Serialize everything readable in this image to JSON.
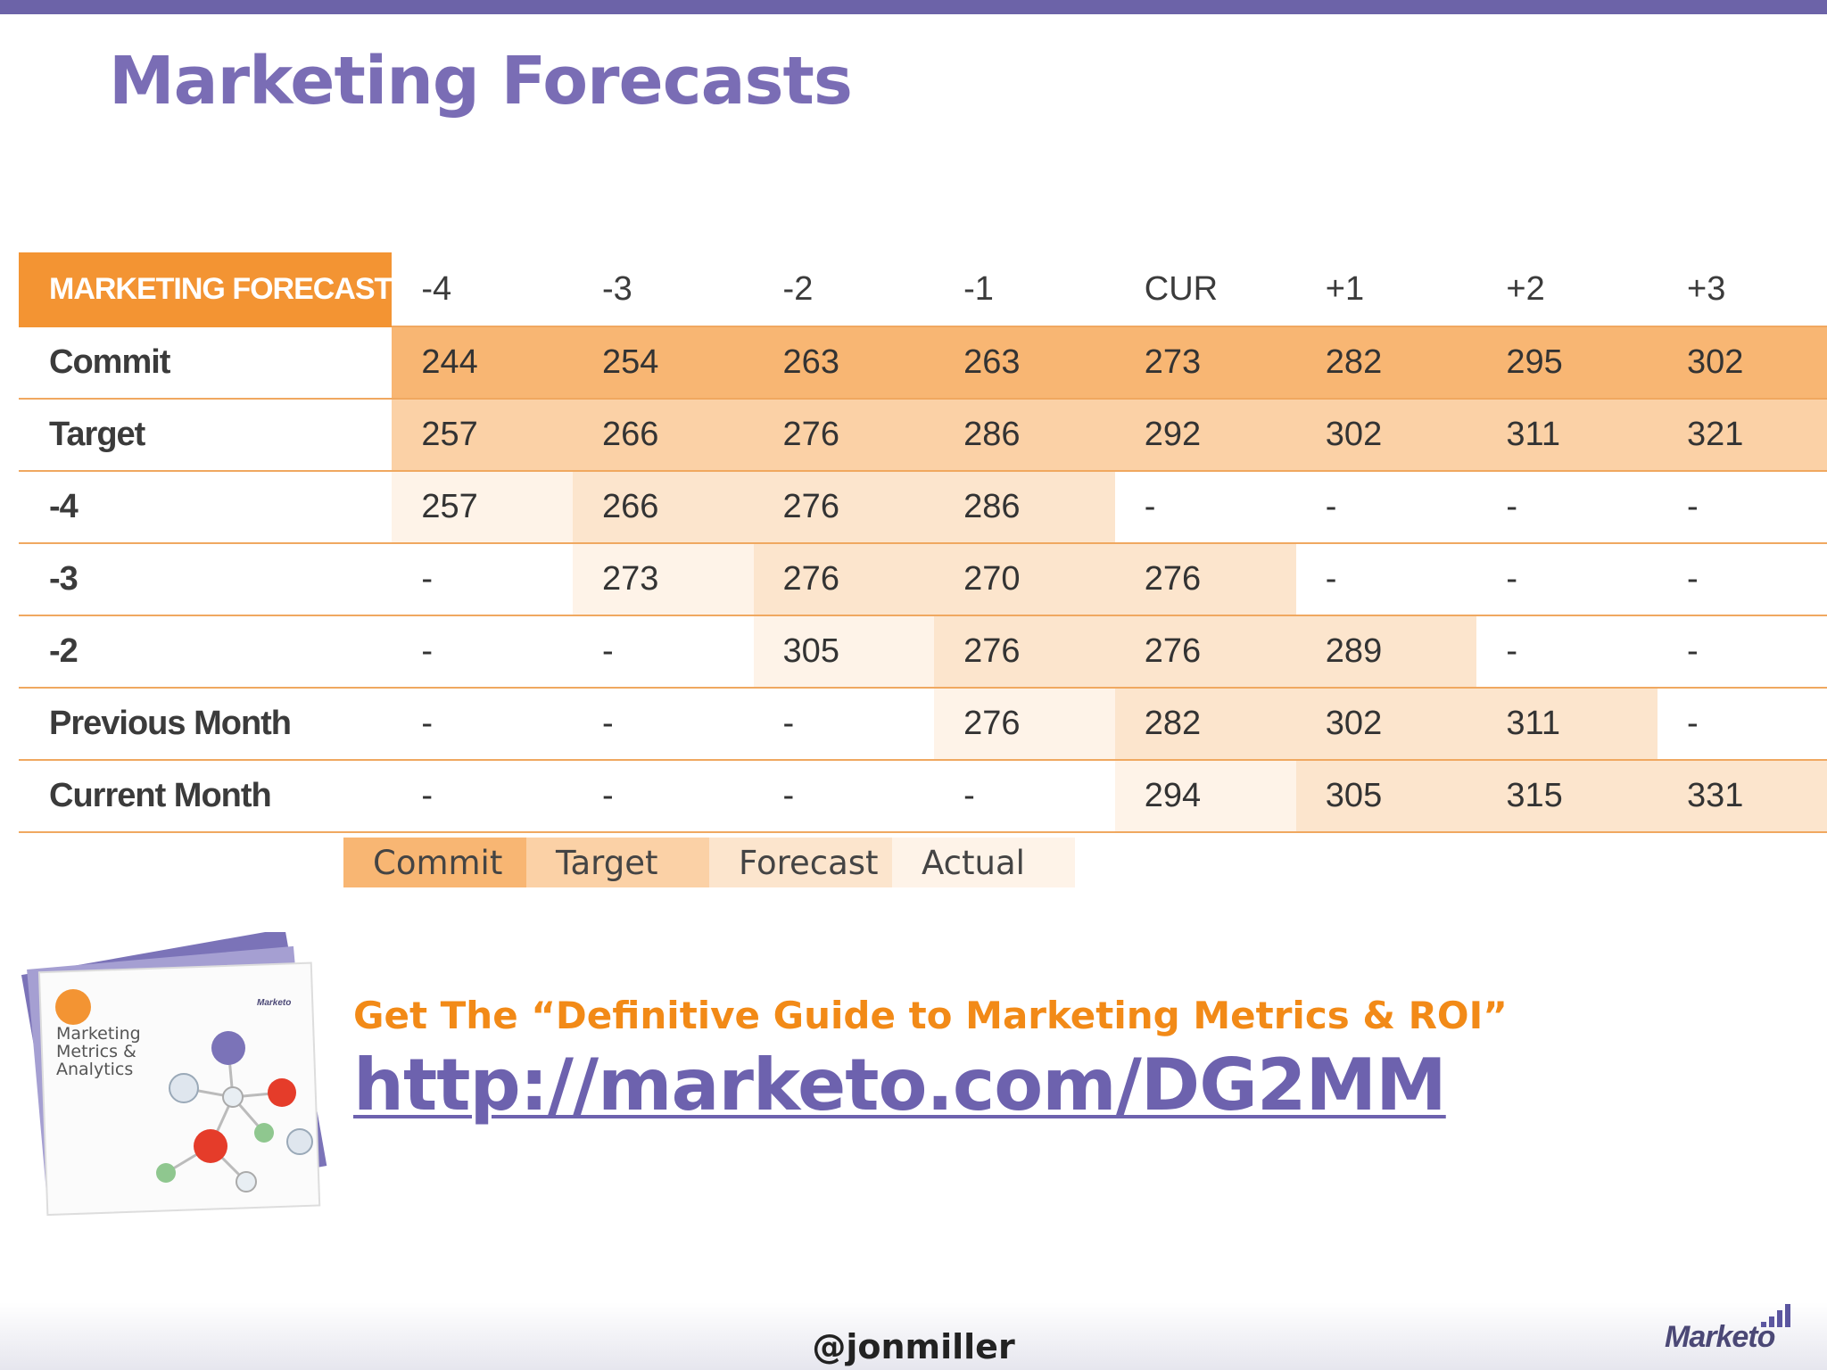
{
  "slide": {
    "title": "Marketing Forecasts",
    "top_bar_color": "#6c63a8"
  },
  "table": {
    "corner_label": "MARKETING FORECAST",
    "periods": [
      "-4",
      "-3",
      "-2",
      "-1",
      "CUR",
      "+1",
      "+2",
      "+3"
    ],
    "rows": [
      {
        "label": "Commit",
        "cells": [
          "244",
          "254",
          "263",
          "263",
          "273",
          "282",
          "295",
          "302"
        ],
        "shade": [
          "commit",
          "commit",
          "commit",
          "commit",
          "commit",
          "commit",
          "commit",
          "commit"
        ]
      },
      {
        "label": "Target",
        "cells": [
          "257",
          "266",
          "276",
          "286",
          "292",
          "302",
          "311",
          "321"
        ],
        "shade": [
          "target",
          "target",
          "target",
          "target",
          "target",
          "target",
          "target",
          "target"
        ]
      },
      {
        "label": "-4",
        "cells": [
          "257",
          "266",
          "276",
          "286",
          "-",
          "-",
          "-",
          "-"
        ],
        "shade": [
          "actual",
          "forecast",
          "forecast",
          "forecast",
          "none",
          "none",
          "none",
          "none"
        ]
      },
      {
        "label": "-3",
        "cells": [
          "-",
          "273",
          "276",
          "270",
          "276",
          "-",
          "-",
          "-"
        ],
        "shade": [
          "none",
          "actual",
          "forecast",
          "forecast",
          "forecast",
          "none",
          "none",
          "none"
        ]
      },
      {
        "label": "-2",
        "cells": [
          "-",
          "-",
          "305",
          "276",
          "276",
          "289",
          "-",
          "-"
        ],
        "shade": [
          "none",
          "none",
          "actual",
          "forecast",
          "forecast",
          "forecast",
          "none",
          "none"
        ]
      },
      {
        "label": "Previous Month",
        "cells": [
          "-",
          "-",
          "-",
          "276",
          "282",
          "302",
          "311",
          "-"
        ],
        "shade": [
          "none",
          "none",
          "none",
          "actual",
          "forecast",
          "forecast",
          "forecast",
          "none"
        ]
      },
      {
        "label": "Current Month",
        "cells": [
          "-",
          "-",
          "-",
          "-",
          "294",
          "305",
          "315",
          "331"
        ],
        "shade": [
          "none",
          "none",
          "none",
          "none",
          "actual",
          "forecast",
          "forecast",
          "forecast"
        ]
      }
    ]
  },
  "legend": [
    {
      "label": "Commit",
      "key": "commit"
    },
    {
      "label": "Target",
      "key": "target"
    },
    {
      "label": "Forecast",
      "key": "forecast"
    },
    {
      "label": "Actual",
      "key": "actual"
    }
  ],
  "colors": {
    "corner": "#f39433",
    "commit": "#f8b673",
    "target": "#fbd1a6",
    "forecast": "#fce5cd",
    "actual": "#fef3e8",
    "none": "#ffffff",
    "title": "#7a6db5",
    "cta": "#f28a17",
    "link": "#6d62ae"
  },
  "guide_book": {
    "cover_text": [
      "Marketing",
      "Metrics &",
      "Analytics"
    ],
    "brand": "Marketo"
  },
  "cta": {
    "text": "Get The “Definitive Guide to Marketing Metrics & ROI”",
    "link": "http://marketo.com/DG2MM"
  },
  "footer": {
    "handle": "@jonmiller",
    "brand": "Marketo"
  }
}
